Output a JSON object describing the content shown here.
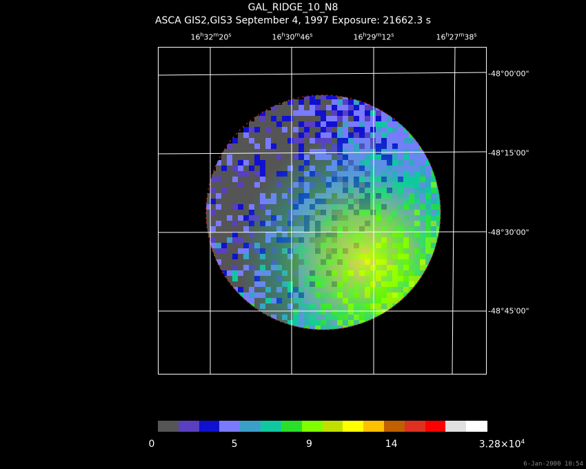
{
  "title": "GAL_RIDGE_10_N8",
  "subtitle": "ASCA GIS2,GIS3 September 4, 1997 Exposure: 21662.3 s",
  "ra_labels": [
    {
      "h": "16",
      "m": "32",
      "s": "20"
    },
    {
      "h": "16",
      "m": "30",
      "s": "46"
    },
    {
      "h": "16",
      "m": "29",
      "s": "12"
    },
    {
      "h": "16",
      "m": "27",
      "s": "38"
    }
  ],
  "dec_labels": [
    "-48°00'00\"",
    "-48°15'00\"",
    "-48°30'00\"",
    "-48°45'00\""
  ],
  "colorbar": {
    "colors": [
      "#555555",
      "#5a3fc0",
      "#1010d0",
      "#7a7aff",
      "#3aa0c8",
      "#10c8a0",
      "#28e028",
      "#80ff00",
      "#c0e000",
      "#ffff00",
      "#ffc000",
      "#c06000",
      "#e03020",
      "#ff0000",
      "#e0e0e0",
      "#ffffff"
    ],
    "labels": [
      {
        "text": "0",
        "pos": 0.0
      },
      {
        "text": "5",
        "pos": 0.233
      },
      {
        "text": "9",
        "pos": 0.46
      },
      {
        "text": "14",
        "pos": 0.71
      },
      {
        "text": "3.28×10",
        "sup": "4",
        "pos": 1.0
      }
    ]
  },
  "timestamp": "6-Jan-2000 10:54"
}
